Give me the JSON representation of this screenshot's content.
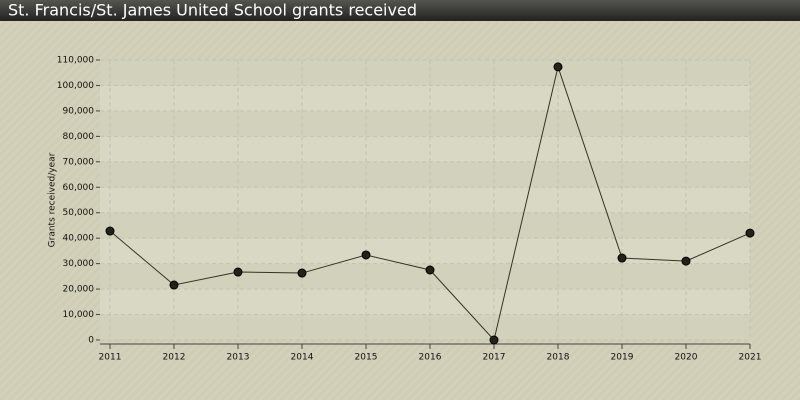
{
  "chart_data": {
    "type": "line",
    "title": "St. Francis/St. James United School grants received",
    "y_label": "Grants received/year",
    "x": [
      2011,
      2012,
      2013,
      2014,
      2015,
      2016,
      2017,
      2018,
      2019,
      2020,
      2021
    ],
    "series": [
      {
        "name": "Grants received",
        "color": "#333322",
        "values": [
          42800,
          21600,
          26700,
          26300,
          33400,
          27500,
          0,
          107300,
          32200,
          31000,
          42000
        ]
      }
    ],
    "xlim": [
      2011,
      2021
    ],
    "xticks": [
      2011,
      2012,
      2013,
      2014,
      2015,
      2016,
      2017,
      2018,
      2019,
      2020,
      2021
    ],
    "ylim": [
      0,
      110000
    ],
    "yticks": [
      0,
      {
        "value": 10000,
        "label": "10,000"
      },
      {
        "value": 20000,
        "label": "20,000"
      },
      {
        "value": 30000,
        "label": "30,000"
      },
      {
        "value": 40000,
        "label": "40,000"
      },
      {
        "value": 50000,
        "label": "50,000"
      },
      {
        "value": 60000,
        "label": "60,000"
      },
      {
        "value": 70000,
        "label": "70,000"
      },
      {
        "value": 80000,
        "label": "80,000"
      },
      {
        "value": 90000,
        "label": "90,000"
      },
      {
        "value": 100000,
        "label": "100,000"
      },
      {
        "value": 110000,
        "label": "110,000"
      }
    ],
    "grid": true
  }
}
